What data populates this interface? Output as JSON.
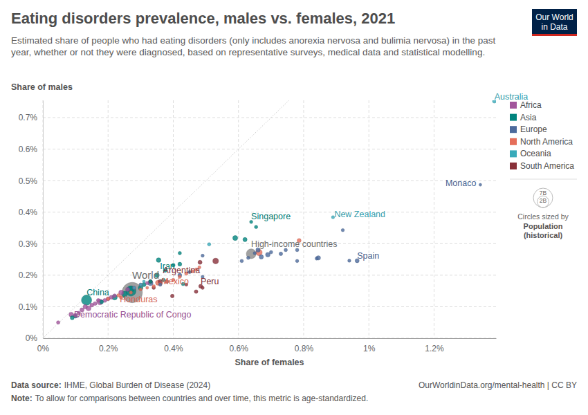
{
  "chart_data": {
    "type": "scatter",
    "title": "Eating disorders prevalence, males vs. females, 2021",
    "subtitle": "Estimated share of people who had eating disorders (only includes anorexia nervosa and bulimia nervosa) in the past year, whether or not they were diagnosed, based on representative surveys, medical data and statistical modelling.",
    "y_label": "Share of males",
    "x_label": "Share of females",
    "logo": [
      "Our World",
      "in Data"
    ],
    "source_label": "Data source:",
    "source": "IHME, Global Burden of Disease (2024)",
    "url": "OurWorldinData.org/mental-health | CC BY",
    "note_label": "Note:",
    "note": "To allow for comparisons between countries and over time, this metric is age-standardized.",
    "xlim": [
      0,
      1.39
    ],
    "ylim": [
      0,
      0.755
    ],
    "xticks": [
      {
        "value": 0,
        "label": "0%"
      },
      {
        "value": 0.2,
        "label": "0.2%"
      },
      {
        "value": 0.4,
        "label": "0.4%"
      },
      {
        "value": 0.6,
        "label": "0.6%"
      },
      {
        "value": 0.8,
        "label": "0.8%"
      },
      {
        "value": 1,
        "label": "1%"
      },
      {
        "value": 1.2,
        "label": "1.2%"
      }
    ],
    "yticks": [
      {
        "value": 0,
        "label": "0%"
      },
      {
        "value": 0.1,
        "label": "0.1%"
      },
      {
        "value": 0.2,
        "label": "0.2%"
      },
      {
        "value": 0.3,
        "label": "0.3%"
      },
      {
        "value": 0.4,
        "label": "0.4%"
      },
      {
        "value": 0.5,
        "label": "0.5%"
      },
      {
        "value": 0.6,
        "label": "0.6%"
      },
      {
        "value": 0.7,
        "label": "0.7%"
      }
    ],
    "grid": true,
    "legend": "right",
    "size_legend": {
      "title": "Circles sized by",
      "variable": "Population",
      "qualifier": "(historical)",
      "ticks": [
        {
          "value": 7000000000,
          "label": "7B"
        },
        {
          "value": 2000000000,
          "label": "2B"
        }
      ]
    },
    "series": [
      {
        "name": "Africa",
        "color": "#a2559c",
        "x": [
          0.087,
          0.047,
          0.1,
          0.11,
          0.12,
          0.13,
          0.15,
          0.16,
          0.175,
          0.19,
          0.2,
          0.22,
          0.24,
          0.26,
          0.28,
          0.3,
          0.32,
          0.14,
          0.17,
          0.21
        ],
        "values": [
          0.075,
          0.05,
          0.073,
          0.08,
          0.09,
          0.1,
          0.105,
          0.11,
          0.115,
          0.12,
          0.125,
          0.135,
          0.145,
          0.155,
          0.16,
          0.17,
          0.175,
          0.095,
          0.12,
          0.13
        ],
        "sizes": [
          95000000,
          12000000,
          30000000,
          20000000,
          50000000,
          60000000,
          30000000,
          25000000,
          213000000,
          40000000,
          30000000,
          20000000,
          110000000,
          45000000,
          15000000,
          10000000,
          8000000,
          120000000,
          28000000,
          35000000
        ],
        "labels": [
          "Democratic Republic of Congo",
          null,
          null,
          null,
          null,
          null,
          null,
          null,
          null,
          null,
          null,
          null,
          null,
          null,
          null,
          null,
          null,
          null,
          null,
          null
        ]
      },
      {
        "name": "Asia",
        "color": "#00847e",
        "x": [
          0.134,
          0.355,
          0.639,
          0.654,
          0.59,
          0.62,
          0.42,
          0.42,
          0.4,
          0.375,
          0.35,
          0.33,
          0.31,
          0.3,
          0.27,
          0.25,
          0.22,
          0.27,
          0.18,
          0.1,
          0.09,
          0.43,
          0.37
        ],
        "values": [
          0.121,
          0.248,
          0.369,
          0.353,
          0.318,
          0.313,
          0.27,
          0.235,
          0.232,
          0.215,
          0.2,
          0.18,
          0.17,
          0.16,
          0.155,
          0.14,
          0.13,
          0.15,
          0.115,
          0.07,
          0.065,
          0.172,
          0.185
        ],
        "sizes": [
          1425000000,
          87000000,
          6000000,
          9000000,
          125000000,
          52000000,
          10000000,
          35000000,
          20000000,
          30000000,
          85000000,
          20000000,
          45000000,
          100000000,
          275000000,
          230000000,
          170000000,
          1407000000,
          30000000,
          40000000,
          35000000,
          10000000,
          15000000
        ],
        "labels": [
          "China",
          "Iran",
          "Singapore",
          null,
          null,
          null,
          null,
          null,
          null,
          null,
          null,
          null,
          null,
          null,
          null,
          null,
          null,
          null,
          null,
          null,
          null,
          null,
          null
        ]
      },
      {
        "name": "Europe",
        "color": "#4c6a9c",
        "x": [
          1.342,
          0.964,
          0.94,
          0.92,
          0.845,
          0.84,
          0.78,
          0.78,
          0.745,
          0.73,
          0.7,
          0.69,
          0.67,
          0.66,
          0.65,
          0.63,
          0.61,
          0.49,
          0.49,
          0.42,
          0.38,
          0.36,
          0.33,
          0.45
        ],
        "values": [
          0.487,
          0.246,
          0.246,
          0.343,
          0.255,
          0.253,
          0.28,
          0.245,
          0.28,
          0.268,
          0.273,
          0.265,
          0.258,
          0.28,
          0.27,
          0.255,
          0.245,
          0.262,
          0.195,
          0.2,
          0.18,
          0.17,
          0.175,
          0.21
        ],
        "sizes": [
          40000,
          47000000,
          5000000,
          5000000,
          67000000,
          9000000,
          10000000,
          6000000,
          11000000,
          17000000,
          10000000,
          83000000,
          59000000,
          65000000,
          5000000,
          9000000,
          10000000,
          5000000,
          2000000,
          38000000,
          19000000,
          10000000,
          144000000,
          7000000
        ],
        "labels": [
          "Monaco",
          "Spain",
          null,
          null,
          null,
          null,
          null,
          null,
          null,
          null,
          null,
          null,
          null,
          null,
          null,
          null,
          null,
          null,
          null,
          null,
          null,
          null,
          null,
          null
        ]
      },
      {
        "name": "North America",
        "color": "#e56e5a",
        "x": [
          0.353,
          0.232,
          0.786,
          0.663,
          0.48,
          0.47,
          0.46,
          0.44,
          0.42,
          0.4,
          0.38,
          0.36,
          0.34,
          0.32,
          0.3,
          0.27,
          0.24,
          0.2
        ],
        "values": [
          0.176,
          0.136,
          0.31,
          0.272,
          0.225,
          0.218,
          0.212,
          0.205,
          0.195,
          0.185,
          0.18,
          0.172,
          0.165,
          0.16,
          0.155,
          0.145,
          0.13,
          0.125
        ],
        "sizes": [
          127000000,
          10000000,
          38000000,
          337000000,
          3000000,
          4000000,
          2000000,
          11000000,
          5000000,
          6000000,
          17000000,
          11000000,
          6000000,
          300000,
          3000000,
          7000000,
          18000000,
          11000000
        ],
        "labels": [
          "Mexico",
          "Honduras",
          null,
          null,
          null,
          null,
          null,
          null,
          null,
          null,
          null,
          null,
          null,
          null,
          null,
          null,
          null,
          null
        ]
      },
      {
        "name": "Oceania",
        "color": "#38aaba",
        "x": [
          1.385,
          0.89,
          0.51,
          0.3,
          0.28,
          0.31
        ],
        "values": [
          0.752,
          0.384,
          0.298,
          0.17,
          0.16,
          0.18
        ],
        "sizes": [
          26000000,
          5000000,
          9000000,
          1000000,
          500000,
          300000
        ],
        "labels": [
          "Australia",
          "New Zealand",
          null,
          null,
          null,
          null
        ]
      },
      {
        "name": "South America",
        "color": "#883039",
        "x": [
          0.482,
          0.484,
          0.397,
          0.47,
          0.49,
          0.53,
          0.36,
          0.33,
          0.34,
          0.44
        ],
        "values": [
          0.241,
          0.165,
          0.134,
          0.148,
          0.16,
          0.245,
          0.18,
          0.18,
          0.16,
          0.17
        ],
        "sizes": [
          45000000,
          33000000,
          19000000,
          18000000,
          7000000,
          214000000,
          51000000,
          28000000,
          12000000,
          3000000
        ],
        "labels": [
          "Argentina",
          "Peru",
          null,
          null,
          null,
          null,
          null,
          null,
          null,
          null
        ]
      },
      {
        "color": "#8a8a8a",
        "x": [
          0.274,
          0.639
        ],
        "values": [
          0.145,
          0.268
        ],
        "sizes": [
          7900000000,
          1240000000
        ],
        "labels": [
          "World",
          "High-income countries"
        ]
      }
    ]
  }
}
